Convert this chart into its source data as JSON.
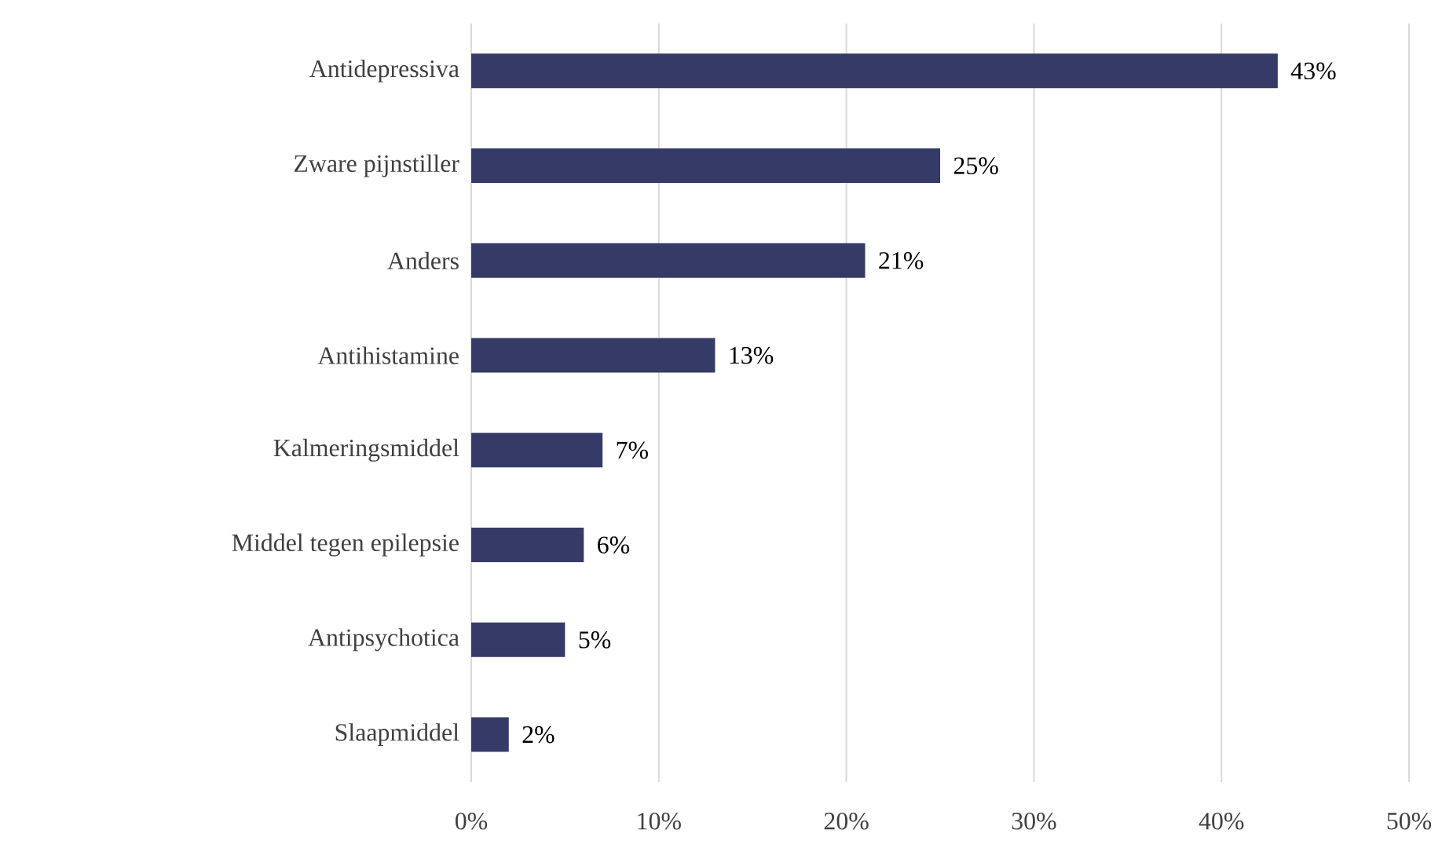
{
  "chart_data": {
    "type": "bar",
    "orientation": "horizontal",
    "categories": [
      "Antidepressiva",
      "Zware pijnstiller",
      "Anders",
      "Antihistamine",
      "Kalmeringsmiddel",
      "Middel tegen epilepsie",
      "Antipsychotica",
      "Slaapmiddel"
    ],
    "values": [
      43,
      25,
      21,
      13,
      7,
      6,
      5,
      2
    ],
    "value_labels": [
      "43%",
      "25%",
      "21%",
      "13%",
      "7%",
      "6%",
      "5%",
      "2%"
    ],
    "color": "#363a66",
    "xlim": [
      0,
      50
    ],
    "xticks": [
      {
        "value": 0,
        "label": "0%"
      },
      {
        "value": 10,
        "label": "10%"
      },
      {
        "value": 20,
        "label": "20%"
      },
      {
        "value": 30,
        "label": "30%"
      },
      {
        "value": 40,
        "label": "40%"
      },
      {
        "value": 50,
        "label": "50%"
      }
    ],
    "grid": "x"
  }
}
